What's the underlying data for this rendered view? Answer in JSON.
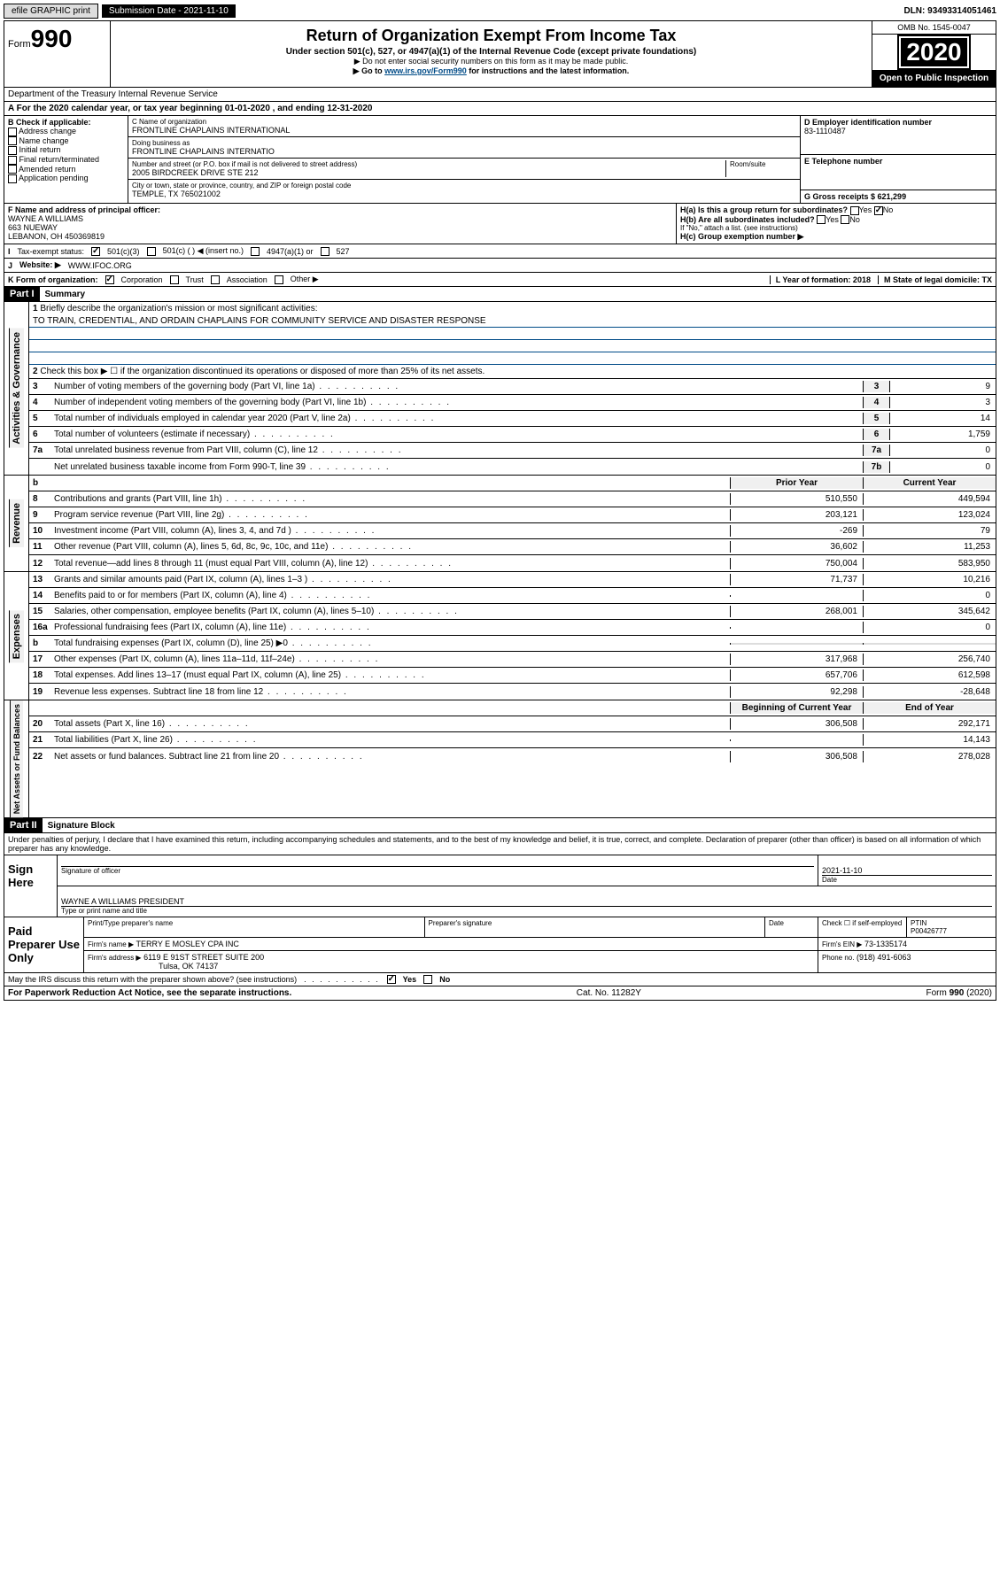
{
  "topbar": {
    "efile": "efile GRAPHIC print",
    "submission": "Submission Date - 2021-11-10",
    "dln": "DLN: 93493314051461"
  },
  "header": {
    "form_word": "Form",
    "form_num": "990",
    "title": "Return of Organization Exempt From Income Tax",
    "subtitle": "Under section 501(c), 527, or 4947(a)(1) of the Internal Revenue Code (except private foundations)",
    "note1": "▶ Do not enter social security numbers on this form as it may be made public.",
    "note2a": "▶ Go to ",
    "note2_link": "www.irs.gov/Form990",
    "note2b": " for instructions and the latest information.",
    "omb": "OMB No. 1545-0047",
    "year": "2020",
    "open": "Open to Public Inspection",
    "dept": "Department of the Treasury Internal Revenue Service"
  },
  "period": "For the 2020 calendar year, or tax year beginning 01-01-2020    , and ending 12-31-2020",
  "boxB": {
    "label": "B Check if applicable:",
    "items": [
      "Address change",
      "Name change",
      "Initial return",
      "Final return/terminated",
      "Amended return",
      "Application pending"
    ]
  },
  "boxC": {
    "name_label": "C Name of organization",
    "name": "FRONTLINE CHAPLAINS INTERNATIONAL",
    "dba_label": "Doing business as",
    "dba": "FRONTLINE CHAPLAINS INTERNATIO",
    "addr_label": "Number and street (or P.O. box if mail is not delivered to street address)",
    "room_label": "Room/suite",
    "addr": "2005 BIRDCREEK DRIVE STE 212",
    "city_label": "City or town, state or province, country, and ZIP or foreign postal code",
    "city": "TEMPLE, TX  765021002"
  },
  "boxD": {
    "label": "D Employer identification number",
    "ein": "83-1110487"
  },
  "boxE": {
    "label": "E Telephone number"
  },
  "boxG": {
    "label": "G Gross receipts $ 621,299"
  },
  "boxF": {
    "label": "F  Name and address of principal officer:",
    "name": "WAYNE A WILLIAMS",
    "addr1": "663 NUEWAY",
    "addr2": "LEBANON, OH  450369819"
  },
  "boxH": {
    "a": "H(a)  Is this a group return for subordinates?",
    "b": "H(b)  Are all subordinates included?",
    "b_note": "If \"No,\" attach a list. (see instructions)",
    "c": "H(c)  Group exemption number ▶"
  },
  "rowI": {
    "label": "I",
    "text": "Tax-exempt status:",
    "opt1": "501(c)(3)",
    "opt2": "501(c) (  ) ◀ (insert no.)",
    "opt3": "4947(a)(1) or",
    "opt4": "527"
  },
  "rowJ": {
    "label": "J",
    "text": "Website: ▶",
    "val": "WWW.IFOC.ORG"
  },
  "rowK": {
    "label": "K Form of organization:",
    "opts": [
      "Corporation",
      "Trust",
      "Association",
      "Other ▶"
    ]
  },
  "rowL": {
    "label": "L Year of formation: 2018"
  },
  "rowM": {
    "label": "M State of legal domicile: TX"
  },
  "part1": {
    "header": "Part I",
    "title": "Summary",
    "l1_label": "1",
    "l1": "Briefly describe the organization's mission or most significant activities:",
    "mission": "TO TRAIN, CREDENTIAL, AND ORDAIN CHAPLAINS FOR COMMUNITY SERVICE AND DISASTER RESPONSE",
    "l2_label": "2",
    "l2": "Check this box ▶ ☐  if the organization discontinued its operations or disposed of more than 25% of its net assets.",
    "lines_gov": [
      {
        "n": "3",
        "d": "Number of voting members of the governing body (Part VI, line 1a)",
        "box": "3",
        "v": "9"
      },
      {
        "n": "4",
        "d": "Number of independent voting members of the governing body (Part VI, line 1b)",
        "box": "4",
        "v": "3"
      },
      {
        "n": "5",
        "d": "Total number of individuals employed in calendar year 2020 (Part V, line 2a)",
        "box": "5",
        "v": "14"
      },
      {
        "n": "6",
        "d": "Total number of volunteers (estimate if necessary)",
        "box": "6",
        "v": "1,759"
      },
      {
        "n": "7a",
        "d": "Total unrelated business revenue from Part VIII, column (C), line 12",
        "box": "7a",
        "v": "0"
      },
      {
        "n": "",
        "d": "Net unrelated business taxable income from Form 990-T, line 39",
        "box": "7b",
        "v": "0"
      }
    ],
    "col_prior": "Prior Year",
    "col_current": "Current Year",
    "lines_rev": [
      {
        "n": "8",
        "d": "Contributions and grants (Part VIII, line 1h)",
        "p": "510,550",
        "c": "449,594"
      },
      {
        "n": "9",
        "d": "Program service revenue (Part VIII, line 2g)",
        "p": "203,121",
        "c": "123,024"
      },
      {
        "n": "10",
        "d": "Investment income (Part VIII, column (A), lines 3, 4, and 7d )",
        "p": "-269",
        "c": "79"
      },
      {
        "n": "11",
        "d": "Other revenue (Part VIII, column (A), lines 5, 6d, 8c, 9c, 10c, and 11e)",
        "p": "36,602",
        "c": "11,253"
      },
      {
        "n": "12",
        "d": "Total revenue—add lines 8 through 11 (must equal Part VIII, column (A), line 12)",
        "p": "750,004",
        "c": "583,950"
      }
    ],
    "lines_exp": [
      {
        "n": "13",
        "d": "Grants and similar amounts paid (Part IX, column (A), lines 1–3 )",
        "p": "71,737",
        "c": "10,216"
      },
      {
        "n": "14",
        "d": "Benefits paid to or for members (Part IX, column (A), line 4)",
        "p": "",
        "c": "0"
      },
      {
        "n": "15",
        "d": "Salaries, other compensation, employee benefits (Part IX, column (A), lines 5–10)",
        "p": "268,001",
        "c": "345,642"
      },
      {
        "n": "16a",
        "d": "Professional fundraising fees (Part IX, column (A), line 11e)",
        "p": "",
        "c": "0"
      },
      {
        "n": "b",
        "d": "Total fundraising expenses (Part IX, column (D), line 25) ▶0",
        "p": "",
        "c": "",
        "shaded": true
      },
      {
        "n": "17",
        "d": "Other expenses (Part IX, column (A), lines 11a–11d, 11f–24e)",
        "p": "317,968",
        "c": "256,740"
      },
      {
        "n": "18",
        "d": "Total expenses. Add lines 13–17 (must equal Part IX, column (A), line 25)",
        "p": "657,706",
        "c": "612,598"
      },
      {
        "n": "19",
        "d": "Revenue less expenses. Subtract line 18 from line 12",
        "p": "92,298",
        "c": "-28,648"
      }
    ],
    "col_begin": "Beginning of Current Year",
    "col_end": "End of Year",
    "lines_net": [
      {
        "n": "20",
        "d": "Total assets (Part X, line 16)",
        "p": "306,508",
        "c": "292,171"
      },
      {
        "n": "21",
        "d": "Total liabilities (Part X, line 26)",
        "p": "",
        "c": "14,143"
      },
      {
        "n": "22",
        "d": "Net assets or fund balances. Subtract line 21 from line 20",
        "p": "306,508",
        "c": "278,028"
      }
    ]
  },
  "part2": {
    "header": "Part II",
    "title": "Signature Block",
    "perjury": "Under penalties of perjury, I declare that I have examined this return, including accompanying schedules and statements, and to the best of my knowledge and belief, it is true, correct, and complete. Declaration of preparer (other than officer) is based on all information of which preparer has any knowledge."
  },
  "sign": {
    "label": "Sign Here",
    "sig_officer": "Signature of officer",
    "date": "2021-11-10",
    "date_label": "Date",
    "name": "WAYNE A WILLIAMS  PRESIDENT",
    "name_label": "Type or print name and title"
  },
  "paid": {
    "label": "Paid Preparer Use Only",
    "h1": "Print/Type preparer's name",
    "h2": "Preparer's signature",
    "h3": "Date",
    "h4": "Check ☐ if self-employed",
    "h5": "PTIN",
    "ptin": "P00426777",
    "firm_name_label": "Firm's name    ▶",
    "firm_name": "TERRY E MOSLEY CPA INC",
    "firm_ein_label": "Firm's EIN ▶",
    "firm_ein": "73-1335174",
    "firm_addr_label": "Firm's address ▶",
    "firm_addr1": "6119 E 91ST STREET SUITE 200",
    "firm_addr2": "Tulsa, OK  74137",
    "phone_label": "Phone no.",
    "phone": "(918) 491-6063"
  },
  "footer": {
    "discuss": "May the IRS discuss this return with the preparer shown above? (see instructions)",
    "yes": "Yes",
    "no": "No",
    "paperwork": "For Paperwork Reduction Act Notice, see the separate instructions.",
    "cat": "Cat. No. 11282Y",
    "form": "Form 990 (2020)"
  },
  "vlabels": {
    "gov": "Activities & Governance",
    "rev": "Revenue",
    "exp": "Expenses",
    "net": "Net Assets or Fund Balances"
  }
}
